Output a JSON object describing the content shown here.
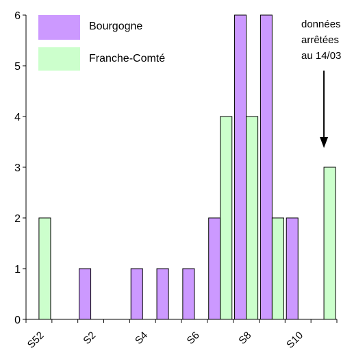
{
  "chart_data": {
    "type": "bar",
    "categories": [
      "S52",
      "S1",
      "S2",
      "S3",
      "S4",
      "S5",
      "S6",
      "S7",
      "S8",
      "S9",
      "S10",
      "S11"
    ],
    "xtick_labels": [
      "S52",
      "S2",
      "S4",
      "S6",
      "S8",
      "S10"
    ],
    "xtick_categories": [
      "S52",
      "S2",
      "S4",
      "S6",
      "S8",
      "S10"
    ],
    "series": [
      {
        "name": "Bourgogne",
        "color": "#cc99ff",
        "values": [
          0,
          0,
          1,
          0,
          1,
          1,
          1,
          2,
          6,
          6,
          2,
          0
        ]
      },
      {
        "name": "Franche-Comté",
        "color": "#ccffcc",
        "values": [
          2,
          0,
          0,
          0,
          0,
          0,
          0,
          4,
          4,
          2,
          0,
          3
        ]
      }
    ],
    "ylim": [
      0,
      6
    ],
    "yticks": [
      0,
      1,
      2,
      3,
      4,
      5,
      6
    ],
    "title": "",
    "xlabel": "",
    "ylabel": "",
    "grid": false,
    "legend_placement": "top-left",
    "annotation": {
      "lines": [
        "données",
        "arrêtées",
        "au 14/03"
      ],
      "target_category": "S11",
      "arrow": "down"
    }
  }
}
